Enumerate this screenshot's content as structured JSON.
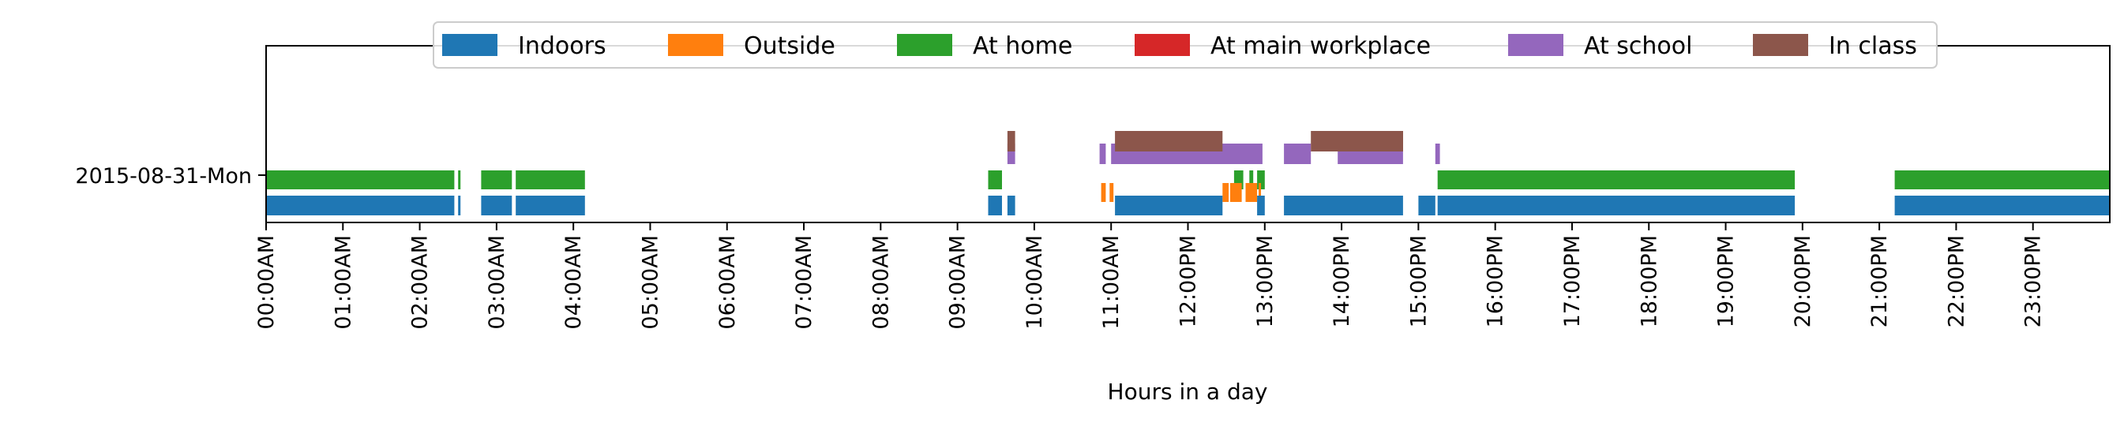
{
  "chart_data": {
    "type": "timeline",
    "title": "",
    "xlabel": "Hours in a day",
    "ylabel": "",
    "xlim": [
      0,
      24
    ],
    "x_ticks": [
      "00:00AM",
      "01:00AM",
      "02:00AM",
      "03:00AM",
      "04:00AM",
      "05:00AM",
      "06:00AM",
      "07:00AM",
      "08:00AM",
      "09:00AM",
      "10:00AM",
      "11:00AM",
      "12:00PM",
      "13:00PM",
      "14:00PM",
      "15:00PM",
      "16:00PM",
      "17:00PM",
      "18:00PM",
      "19:00PM",
      "20:00PM",
      "21:00PM",
      "22:00PM",
      "23:00PM"
    ],
    "rows": [
      "2015-08-31-Mon"
    ],
    "legend_position": "top-center",
    "grid": false,
    "series": [
      {
        "name": "Indoors",
        "color": "#1f77b4",
        "intervals": [
          [
            0.0,
            2.45
          ],
          [
            2.5,
            2.5
          ],
          [
            2.8,
            3.2
          ],
          [
            3.25,
            4.15
          ],
          [
            9.4,
            9.58
          ],
          [
            9.65,
            9.75
          ],
          [
            11.05,
            12.45
          ],
          [
            12.9,
            13.0
          ],
          [
            13.25,
            14.8
          ],
          [
            15.0,
            15.22
          ],
          [
            15.25,
            19.9
          ],
          [
            21.2,
            24.0
          ]
        ]
      },
      {
        "name": "Outside",
        "color": "#ff7f0e",
        "intervals": [
          [
            10.87,
            10.93
          ],
          [
            10.98,
            11.03
          ],
          [
            12.45,
            12.53
          ],
          [
            12.55,
            12.7
          ],
          [
            12.75,
            12.9
          ],
          [
            12.92,
            12.95
          ]
        ]
      },
      {
        "name": "At home",
        "color": "#2ca02c",
        "intervals": [
          [
            0.0,
            2.45
          ],
          [
            2.5,
            2.5
          ],
          [
            2.8,
            3.2
          ],
          [
            3.25,
            4.15
          ],
          [
            9.4,
            9.58
          ],
          [
            12.6,
            12.72
          ],
          [
            12.8,
            12.85
          ],
          [
            12.9,
            13.0
          ],
          [
            15.25,
            19.9
          ],
          [
            21.2,
            24.0
          ]
        ]
      },
      {
        "name": "At main workplace",
        "color": "#d62728",
        "intervals": []
      },
      {
        "name": "At school",
        "color": "#9467bd",
        "intervals": [
          [
            9.65,
            9.75
          ],
          [
            10.85,
            10.93
          ],
          [
            11.0,
            12.97
          ],
          [
            13.25,
            13.6
          ],
          [
            13.95,
            14.8
          ],
          [
            15.22,
            15.28
          ]
        ]
      },
      {
        "name": "In class",
        "color": "#8c564b",
        "intervals": [
          [
            9.65,
            9.75
          ],
          [
            11.05,
            12.45
          ],
          [
            13.6,
            14.8
          ]
        ]
      }
    ]
  }
}
